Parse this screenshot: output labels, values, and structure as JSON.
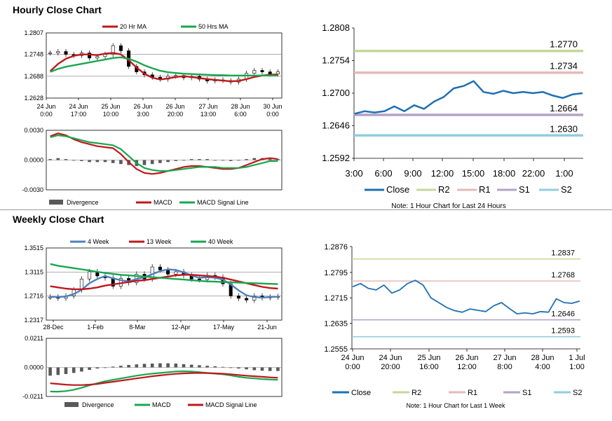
{
  "sections": {
    "hourly_title": "Hourly Close Chart",
    "weekly_title": "Weekly Close Chart"
  },
  "colors": {
    "close": "#1f6fb4",
    "ma_red": "#c0171c",
    "ma_green": "#19a64f",
    "ma_blue": "#4f81bd",
    "r2": "#c4d79b",
    "r1": "#e6b9b8",
    "s1": "#b3a2c7",
    "s2": "#93cddd",
    "divergence": "#595959",
    "grid": "#7f7f7f"
  },
  "chart_data": [
    {
      "id": "hourly_candles",
      "type": "candlestick",
      "legend": [
        "20 Hr MA",
        "50 Hrs MA"
      ],
      "y_ticks": [
        "1.2807",
        "1.2748",
        "1.2688",
        "1.2628"
      ],
      "ylim": [
        1.2628,
        1.2807
      ],
      "x_labels": [
        [
          "24 Jun",
          "0:00"
        ],
        [
          "24 Jun",
          "17:00"
        ],
        [
          "25 Jun",
          "10:00"
        ],
        [
          "26 Jun",
          "3:00"
        ],
        [
          "26 Jun",
          "20:00"
        ],
        [
          "27 Jun",
          "13:00"
        ],
        [
          "28 Jun",
          "6:00"
        ],
        [
          "30 Jun",
          "0:00"
        ]
      ],
      "series": [
        {
          "name": "Close",
          "values": [
            1.2752,
            1.2756,
            1.2748,
            1.2745,
            1.2752,
            1.2738,
            1.2742,
            1.2748,
            1.2772,
            1.2758,
            1.2715,
            1.27,
            1.2692,
            1.2685,
            1.268,
            1.2688,
            1.269,
            1.2684,
            1.2688,
            1.268,
            1.2675,
            1.2678,
            1.2676,
            1.2672,
            1.268,
            1.2696,
            1.2704,
            1.27,
            1.2694,
            1.27
          ]
        },
        {
          "name": "20 Hr MA",
          "values": [
            1.2702,
            1.2722,
            1.2736,
            1.2744,
            1.2748,
            1.2748,
            1.2746,
            1.275,
            1.2752,
            1.2748,
            1.2732,
            1.2712,
            1.2695,
            1.2684,
            1.2679,
            1.2682,
            1.2686,
            1.2688,
            1.2686,
            1.2683,
            1.268,
            1.2678,
            1.2676,
            1.2674,
            1.2675,
            1.268,
            1.2686,
            1.269,
            1.2692,
            1.2693
          ]
        },
        {
          "name": "50 Hrs MA",
          "values": [
            1.27,
            1.2708,
            1.2714,
            1.2718,
            1.2722,
            1.2726,
            1.273,
            1.2734,
            1.2738,
            1.274,
            1.2736,
            1.2728,
            1.2718,
            1.271,
            1.2703,
            1.2699,
            1.2697,
            1.2695,
            1.2694,
            1.2693,
            1.2692,
            1.2691,
            1.2691,
            1.269,
            1.269,
            1.269,
            1.269,
            1.269,
            1.269,
            1.269
          ]
        }
      ]
    },
    {
      "id": "hourly_macd",
      "type": "macd",
      "y_ticks": [
        "0.0030",
        "0.0000",
        "-0.0030"
      ],
      "ylim": [
        -0.003,
        0.003
      ],
      "legend": [
        "Divergence",
        "MACD",
        "MACD Signal Line"
      ],
      "series": [
        {
          "name": "Divergence",
          "values": [
            0.0001,
            0.0002,
            0.0001,
            0.0,
            -0.0001,
            -0.0002,
            -0.0002,
            -0.0002,
            -0.0003,
            -0.0004,
            -0.0005,
            -0.0006,
            -0.0005,
            -0.0004,
            -0.0003,
            -0.0002,
            -0.0001,
            0.0,
            0.0001,
            0.0001,
            0.0001,
            0.0,
            0.0,
            -0.0001,
            0.0,
            0.0001,
            0.0002,
            0.0002,
            0.0001,
            0.0001
          ]
        },
        {
          "name": "MACD",
          "values": [
            0.0024,
            0.0027,
            0.0025,
            0.0021,
            0.0018,
            0.0016,
            0.0014,
            0.0013,
            0.0012,
            0.0006,
            -0.0002,
            -0.0009,
            -0.0013,
            -0.0014,
            -0.0013,
            -0.0011,
            -0.0009,
            -0.0007,
            -0.0006,
            -0.0006,
            -0.0007,
            -0.0008,
            -0.0009,
            -0.0009,
            -0.0008,
            -0.0005,
            -0.0002,
            0.0001,
            0.0002,
            0.0001
          ]
        },
        {
          "name": "MACD Signal Line",
          "values": [
            0.0023,
            0.0025,
            0.0024,
            0.0022,
            0.002,
            0.0018,
            0.0017,
            0.0016,
            0.0015,
            0.0011,
            0.0004,
            -0.0003,
            -0.0008,
            -0.001,
            -0.0011,
            -0.0011,
            -0.001,
            -0.0009,
            -0.0008,
            -0.0007,
            -0.0007,
            -0.0007,
            -0.0008,
            -0.0008,
            -0.0008,
            -0.0007,
            -0.0005,
            -0.0003,
            -0.0001,
            -0.0001
          ]
        }
      ]
    },
    {
      "id": "hourly_levels",
      "type": "line",
      "title": "",
      "y_ticks": [
        "1.2808",
        "1.2754",
        "1.2700",
        "1.2646",
        "1.2592"
      ],
      "ylim": [
        1.2592,
        1.2808
      ],
      "x_labels": [
        "3:00",
        "6:00",
        "9:00",
        "12:00",
        "15:00",
        "18:00",
        "22:00",
        "1:00"
      ],
      "close": [
        1.2666,
        1.267,
        1.2668,
        1.267,
        1.2678,
        1.267,
        1.268,
        1.2674,
        1.2686,
        1.2694,
        1.2708,
        1.2712,
        1.272,
        1.2702,
        1.2699,
        1.2704,
        1.27,
        1.2702,
        1.27,
        1.2702,
        1.2696,
        1.2692,
        1.2698,
        1.27
      ],
      "levels": [
        {
          "name": "R2",
          "value": 1.277,
          "label": "1.2770"
        },
        {
          "name": "R1",
          "value": 1.2734,
          "label": "1.2734"
        },
        {
          "name": "S1",
          "value": 1.2664,
          "label": "1.2664"
        },
        {
          "name": "S2",
          "value": 1.263,
          "label": "1.2630"
        }
      ],
      "legend": [
        "Close",
        "R2",
        "R1",
        "S1",
        "S2"
      ],
      "note": "Note: 1 Hour Chart for Last 24 Hours"
    },
    {
      "id": "weekly_candles",
      "type": "candlestick",
      "legend": [
        "4 Week",
        "13 Week",
        "40 Week"
      ],
      "y_ticks": [
        "1.3515",
        "1.3115",
        "1.2716",
        "1.2317"
      ],
      "ylim": [
        1.2317,
        1.3515
      ],
      "x_labels": [
        "28-Dec",
        "1-Feb",
        "8-Mar",
        "12-Apr",
        "17-May",
        "21-Jun"
      ],
      "series": [
        {
          "name": "Close",
          "values": [
            1.27,
            1.268,
            1.272,
            1.282,
            1.3,
            1.312,
            1.305,
            1.302,
            1.288,
            1.301,
            1.294,
            1.308,
            1.3,
            1.32,
            1.315,
            1.308,
            1.312,
            1.306,
            1.3,
            1.299,
            1.306,
            1.303,
            1.292,
            1.272,
            1.268,
            1.265,
            1.272,
            1.269,
            1.27,
            1.271
          ]
        },
        {
          "name": "4 Week",
          "values": [
            1.2705,
            1.27,
            1.271,
            1.275,
            1.282,
            1.293,
            1.3,
            1.305,
            1.301,
            1.298,
            1.296,
            1.3,
            1.303,
            1.308,
            1.313,
            1.316,
            1.315,
            1.311,
            1.306,
            1.302,
            1.303,
            1.302,
            1.299,
            1.291,
            1.281,
            1.273,
            1.27,
            1.269,
            1.27,
            1.2705
          ]
        },
        {
          "name": "13 Week",
          "values": [
            1.288,
            1.286,
            1.284,
            1.283,
            1.283,
            1.284,
            1.286,
            1.289,
            1.291,
            1.293,
            1.295,
            1.297,
            1.298,
            1.3,
            1.302,
            1.304,
            1.306,
            1.307,
            1.307,
            1.306,
            1.305,
            1.304,
            1.302,
            1.299,
            1.296,
            1.293,
            1.29,
            1.287,
            1.285,
            1.284
          ]
        },
        {
          "name": "40 Week",
          "values": [
            1.325,
            1.322,
            1.32,
            1.318,
            1.316,
            1.314,
            1.312,
            1.31,
            1.3085,
            1.307,
            1.306,
            1.305,
            1.304,
            1.303,
            1.302,
            1.301,
            1.3,
            1.299,
            1.298,
            1.297,
            1.296,
            1.2955,
            1.295,
            1.2945,
            1.294,
            1.2935,
            1.293,
            1.2925,
            1.292,
            1.2915
          ]
        }
      ]
    },
    {
      "id": "weekly_macd",
      "type": "macd",
      "y_ticks": [
        "0.0211",
        "0.0000",
        "-0.0211"
      ],
      "ylim": [
        -0.0211,
        0.0211
      ],
      "legend": [
        "Divergence",
        "MACD",
        "MACD Signal Line"
      ],
      "series": [
        {
          "name": "Divergence",
          "values": [
            -0.006,
            -0.0055,
            -0.0048,
            -0.004,
            -0.003,
            -0.0018,
            -0.0008,
            0.0,
            0.0006,
            0.0012,
            0.0018,
            0.0022,
            0.0026,
            0.0028,
            0.003,
            0.003,
            0.0028,
            0.0024,
            0.002,
            0.0016,
            0.0012,
            0.0008,
            0.0004,
            -0.0002,
            -0.0008,
            -0.0014,
            -0.002,
            -0.0024,
            -0.0026,
            -0.0026
          ]
        },
        {
          "name": "MACD",
          "values": [
            -0.0175,
            -0.0176,
            -0.0172,
            -0.0162,
            -0.0148,
            -0.013,
            -0.0115,
            -0.01,
            -0.009,
            -0.008,
            -0.007,
            -0.006,
            -0.0052,
            -0.0045,
            -0.004,
            -0.0035,
            -0.003,
            -0.0028,
            -0.003,
            -0.0035,
            -0.004,
            -0.0045,
            -0.005,
            -0.0058,
            -0.0068,
            -0.0075,
            -0.008,
            -0.0085,
            -0.0088,
            -0.009
          ]
        },
        {
          "name": "MACD Signal Line",
          "values": [
            -0.0115,
            -0.012,
            -0.0125,
            -0.0128,
            -0.0128,
            -0.0125,
            -0.012,
            -0.0112,
            -0.0104,
            -0.0096,
            -0.0088,
            -0.008,
            -0.0072,
            -0.0064,
            -0.0058,
            -0.0052,
            -0.0047,
            -0.0043,
            -0.0041,
            -0.004,
            -0.0041,
            -0.0043,
            -0.0046,
            -0.005,
            -0.0055,
            -0.006,
            -0.0064,
            -0.0068,
            -0.0072,
            -0.0075
          ]
        }
      ]
    },
    {
      "id": "weekly_levels",
      "type": "line",
      "title": "",
      "y_ticks": [
        "1.2876",
        "1.2795",
        "1.2715",
        "1.2635",
        "1.2555"
      ],
      "ylim": [
        1.2555,
        1.2876
      ],
      "x_labels": [
        [
          "24 Jun",
          "0:00"
        ],
        [
          "24 Jun",
          "20:00"
        ],
        [
          "25 Jun",
          "16:00"
        ],
        [
          "26 Jun",
          "12:00"
        ],
        [
          "27 Jun",
          "8:00"
        ],
        [
          "28 Jun",
          "4:00"
        ],
        [
          "1 Jul",
          "1:00"
        ]
      ],
      "close": [
        1.275,
        1.276,
        1.2745,
        1.274,
        1.2755,
        1.273,
        1.274,
        1.276,
        1.277,
        1.2755,
        1.2715,
        1.27,
        1.2685,
        1.2675,
        1.267,
        1.268,
        1.2676,
        1.2672,
        1.269,
        1.27,
        1.2682,
        1.2665,
        1.2668,
        1.2665,
        1.2672,
        1.267,
        1.2712,
        1.27,
        1.2698,
        1.2705
      ],
      "levels": [
        {
          "name": "R2",
          "value": 1.2837,
          "label": "1.2837"
        },
        {
          "name": "R1",
          "value": 1.2768,
          "label": "1.2768"
        },
        {
          "name": "S1",
          "value": 1.2646,
          "label": "1.2646"
        },
        {
          "name": "S2",
          "value": 1.2593,
          "label": "1.2593"
        }
      ],
      "legend": [
        "Close",
        "R2",
        "R1",
        "S1",
        "S2"
      ],
      "note": "Note: 1 Hour Chart for Last 1 Week"
    }
  ]
}
